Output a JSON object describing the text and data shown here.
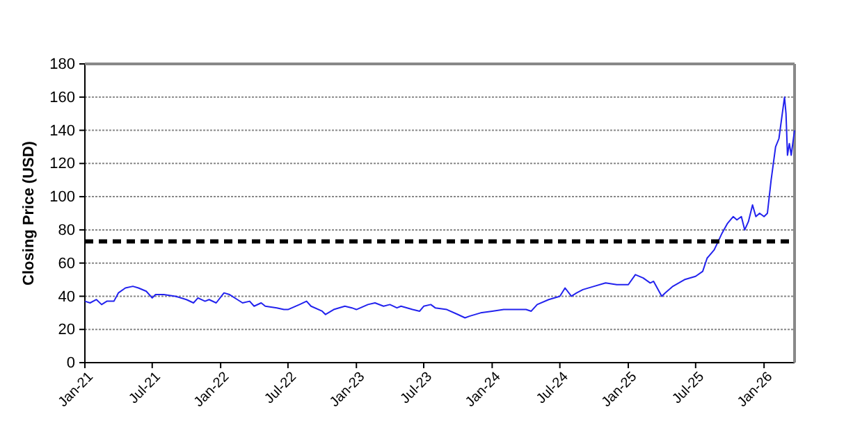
{
  "chart_data": {
    "type": "line",
    "ylabel": "Closing Price (USD)",
    "xlim": [
      "2021-01-01",
      "2026-03-24"
    ],
    "xticks": [
      {
        "value": "2021-01-01",
        "label": "Jan-21"
      },
      {
        "value": "2021-07-01",
        "label": "Jul-21"
      },
      {
        "value": "2022-01-01",
        "label": "Jan-22"
      },
      {
        "value": "2022-07-01",
        "label": "Jul-22"
      },
      {
        "value": "2023-01-01",
        "label": "Jan-23"
      },
      {
        "value": "2023-07-01",
        "label": "Jul-23"
      },
      {
        "value": "2024-01-01",
        "label": "Jan-24"
      },
      {
        "value": "2024-07-01",
        "label": "Jul-24"
      },
      {
        "value": "2025-01-01",
        "label": "Jan-25"
      },
      {
        "value": "2025-07-01",
        "label": "Jul-25"
      },
      {
        "value": "2026-01-01",
        "label": "Jan-26"
      }
    ],
    "ylim": [
      0,
      180
    ],
    "yticks": [
      0,
      20,
      40,
      60,
      80,
      100,
      120,
      140,
      160,
      180
    ],
    "grid": "y",
    "marker": "none",
    "line_style": "solid",
    "ref_lines": [
      {
        "axis": "y",
        "value": 73,
        "color": "#000000",
        "line_style": "dashed"
      }
    ],
    "series": [
      {
        "color": "#2222ee",
        "x": [
          "2021-01-01",
          "2021-01-15",
          "2021-02-01",
          "2021-02-15",
          "2021-03-01",
          "2021-03-20",
          "2021-04-01",
          "2021-04-20",
          "2021-05-10",
          "2021-05-25",
          "2021-06-15",
          "2021-07-01",
          "2021-07-10",
          "2021-08-01",
          "2021-09-01",
          "2021-10-01",
          "2021-10-20",
          "2021-11-01",
          "2021-11-20",
          "2021-12-01",
          "2021-12-20",
          "2022-01-10",
          "2022-01-25",
          "2022-02-15",
          "2022-03-01",
          "2022-03-20",
          "2022-04-01",
          "2022-04-20",
          "2022-05-01",
          "2022-06-01",
          "2022-06-20",
          "2022-07-01",
          "2022-08-01",
          "2022-08-20",
          "2022-09-01",
          "2022-10-01",
          "2022-10-10",
          "2022-11-01",
          "2022-12-01",
          "2022-12-20",
          "2023-01-01",
          "2023-02-01",
          "2023-02-20",
          "2023-03-15",
          "2023-04-01",
          "2023-04-20",
          "2023-05-01",
          "2023-06-01",
          "2023-06-20",
          "2023-07-01",
          "2023-07-20",
          "2023-08-01",
          "2023-09-01",
          "2023-10-01",
          "2023-10-20",
          "2023-11-01",
          "2023-12-01",
          "2024-01-01",
          "2024-02-01",
          "2024-03-01",
          "2024-04-01",
          "2024-04-15",
          "2024-05-01",
          "2024-06-01",
          "2024-07-01",
          "2024-07-15",
          "2024-08-01",
          "2024-08-15",
          "2024-09-01",
          "2024-10-01",
          "2024-11-01",
          "2024-12-01",
          "2025-01-01",
          "2025-01-20",
          "2025-02-10",
          "2025-03-01",
          "2025-03-10",
          "2025-04-01",
          "2025-04-10",
          "2025-05-01",
          "2025-06-01",
          "2025-07-01",
          "2025-07-20",
          "2025-08-01",
          "2025-08-20",
          "2025-09-10",
          "2025-09-25",
          "2025-10-10",
          "2025-10-20",
          "2025-11-01",
          "2025-11-10",
          "2025-11-20",
          "2025-12-01",
          "2025-12-10",
          "2025-12-20",
          "2026-01-01",
          "2026-01-10",
          "2026-01-20",
          "2026-02-01",
          "2026-02-10",
          "2026-02-25",
          "2026-03-01",
          "2026-03-05",
          "2026-03-10",
          "2026-03-15",
          "2026-03-24"
        ],
        "values": [
          37,
          36,
          38,
          35,
          37,
          37,
          42,
          45,
          46,
          45,
          43,
          39,
          41,
          41,
          40,
          38,
          36,
          39,
          37,
          38,
          36,
          42,
          41,
          38,
          36,
          37,
          34,
          36,
          34,
          33,
          32,
          32,
          35,
          37,
          34,
          31,
          29,
          32,
          34,
          33,
          32,
          35,
          36,
          34,
          35,
          33,
          34,
          32,
          31,
          34,
          35,
          33,
          32,
          29,
          27,
          28,
          30,
          31,
          32,
          32,
          32,
          31,
          35,
          38,
          40,
          45,
          40,
          42,
          44,
          46,
          48,
          47,
          47,
          53,
          51,
          48,
          49,
          40,
          42,
          46,
          50,
          52,
          55,
          63,
          68,
          78,
          84,
          88,
          86,
          88,
          80,
          85,
          95,
          88,
          90,
          88,
          90,
          110,
          130,
          135,
          160,
          150,
          125,
          132,
          125,
          140
        ]
      }
    ]
  }
}
